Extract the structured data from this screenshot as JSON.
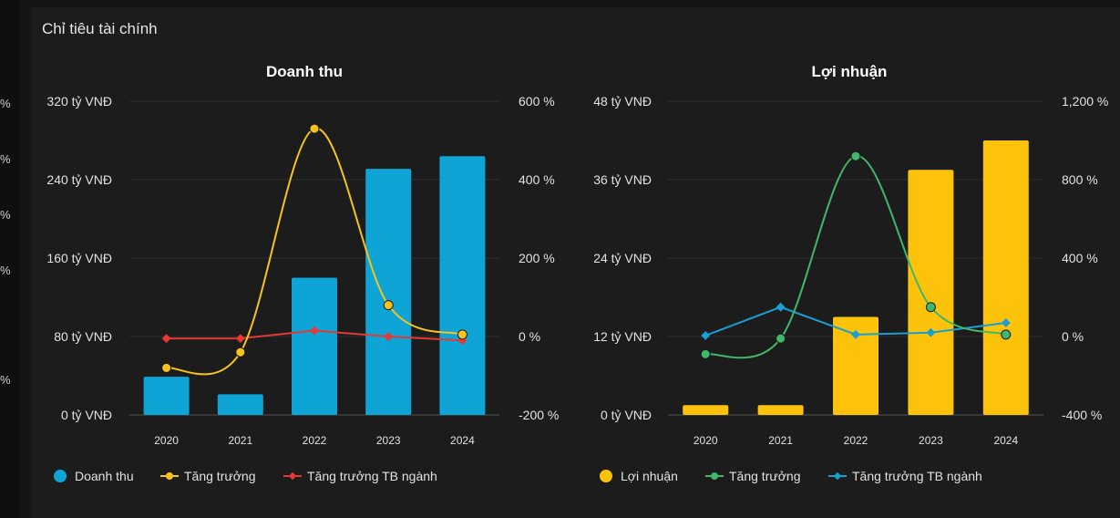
{
  "panel": {
    "title": "Chỉ tiêu tài chính"
  },
  "left_strip_marks": [
    "%",
    "%",
    "%",
    "%",
    "%"
  ],
  "colors": {
    "revenue_bar": "#0ea5d6",
    "revenue_growth": "#f7c41b",
    "revenue_industry": "#e53935",
    "profit_bar": "#fcc30a",
    "profit_growth": "#3fb86b",
    "profit_industry": "#1a9fd2",
    "grid": "#2e2e2e",
    "background": "#1c1c1c"
  },
  "chart_data": [
    {
      "type": "bar",
      "title": "Doanh thu",
      "categories": [
        "2020",
        "2021",
        "2022",
        "2023",
        "2024"
      ],
      "left_axis": {
        "ticks": [
          "0 tỷ VNĐ",
          "80 tỷ VNĐ",
          "160 tỷ VNĐ",
          "240 tỷ VNĐ",
          "320 tỷ VNĐ"
        ],
        "ylim": [
          0,
          320
        ],
        "unit": "tỷ VNĐ"
      },
      "right_axis": {
        "ticks": [
          "-200 %",
          "0 %",
          "200 %",
          "400 %",
          "600 %"
        ],
        "ylim": [
          -200,
          600
        ],
        "unit": "%"
      },
      "series": [
        {
          "name": "Doanh thu",
          "kind": "bar",
          "axis": "left",
          "values": [
            39,
            21,
            140,
            251,
            264
          ]
        },
        {
          "name": "Tăng trưởng",
          "kind": "line",
          "axis": "right",
          "values": [
            -80,
            -40,
            530,
            80,
            5
          ]
        },
        {
          "name": "Tăng trưởng TB ngành",
          "kind": "line",
          "axis": "right",
          "values": [
            -5,
            -5,
            15,
            0,
            -10
          ]
        }
      ],
      "legend_position": "bottom-left",
      "grid": true
    },
    {
      "type": "bar",
      "title": "Lợi nhuận",
      "categories": [
        "2020",
        "2021",
        "2022",
        "2023",
        "2024"
      ],
      "left_axis": {
        "ticks": [
          "0 tỷ VNĐ",
          "12 tỷ VNĐ",
          "24 tỷ VNĐ",
          "36 tỷ VNĐ",
          "48 tỷ VNĐ"
        ],
        "ylim": [
          0,
          48
        ],
        "unit": "tỷ VNĐ"
      },
      "right_axis": {
        "ticks": [
          "-400 %",
          "0 %",
          "400 %",
          "800 %",
          "1,200 %"
        ],
        "ylim": [
          -400,
          1200
        ],
        "unit": "%"
      },
      "series": [
        {
          "name": "Lợi nhuận",
          "kind": "bar",
          "axis": "left",
          "values": [
            1.5,
            1.5,
            15,
            37.5,
            42
          ]
        },
        {
          "name": "Tăng trưởng",
          "kind": "line",
          "axis": "right",
          "values": [
            -90,
            -10,
            920,
            150,
            10
          ]
        },
        {
          "name": "Tăng trưởng TB ngành",
          "kind": "line",
          "axis": "right",
          "values": [
            5,
            150,
            10,
            20,
            70
          ]
        }
      ],
      "legend_position": "bottom-left",
      "grid": true
    }
  ]
}
